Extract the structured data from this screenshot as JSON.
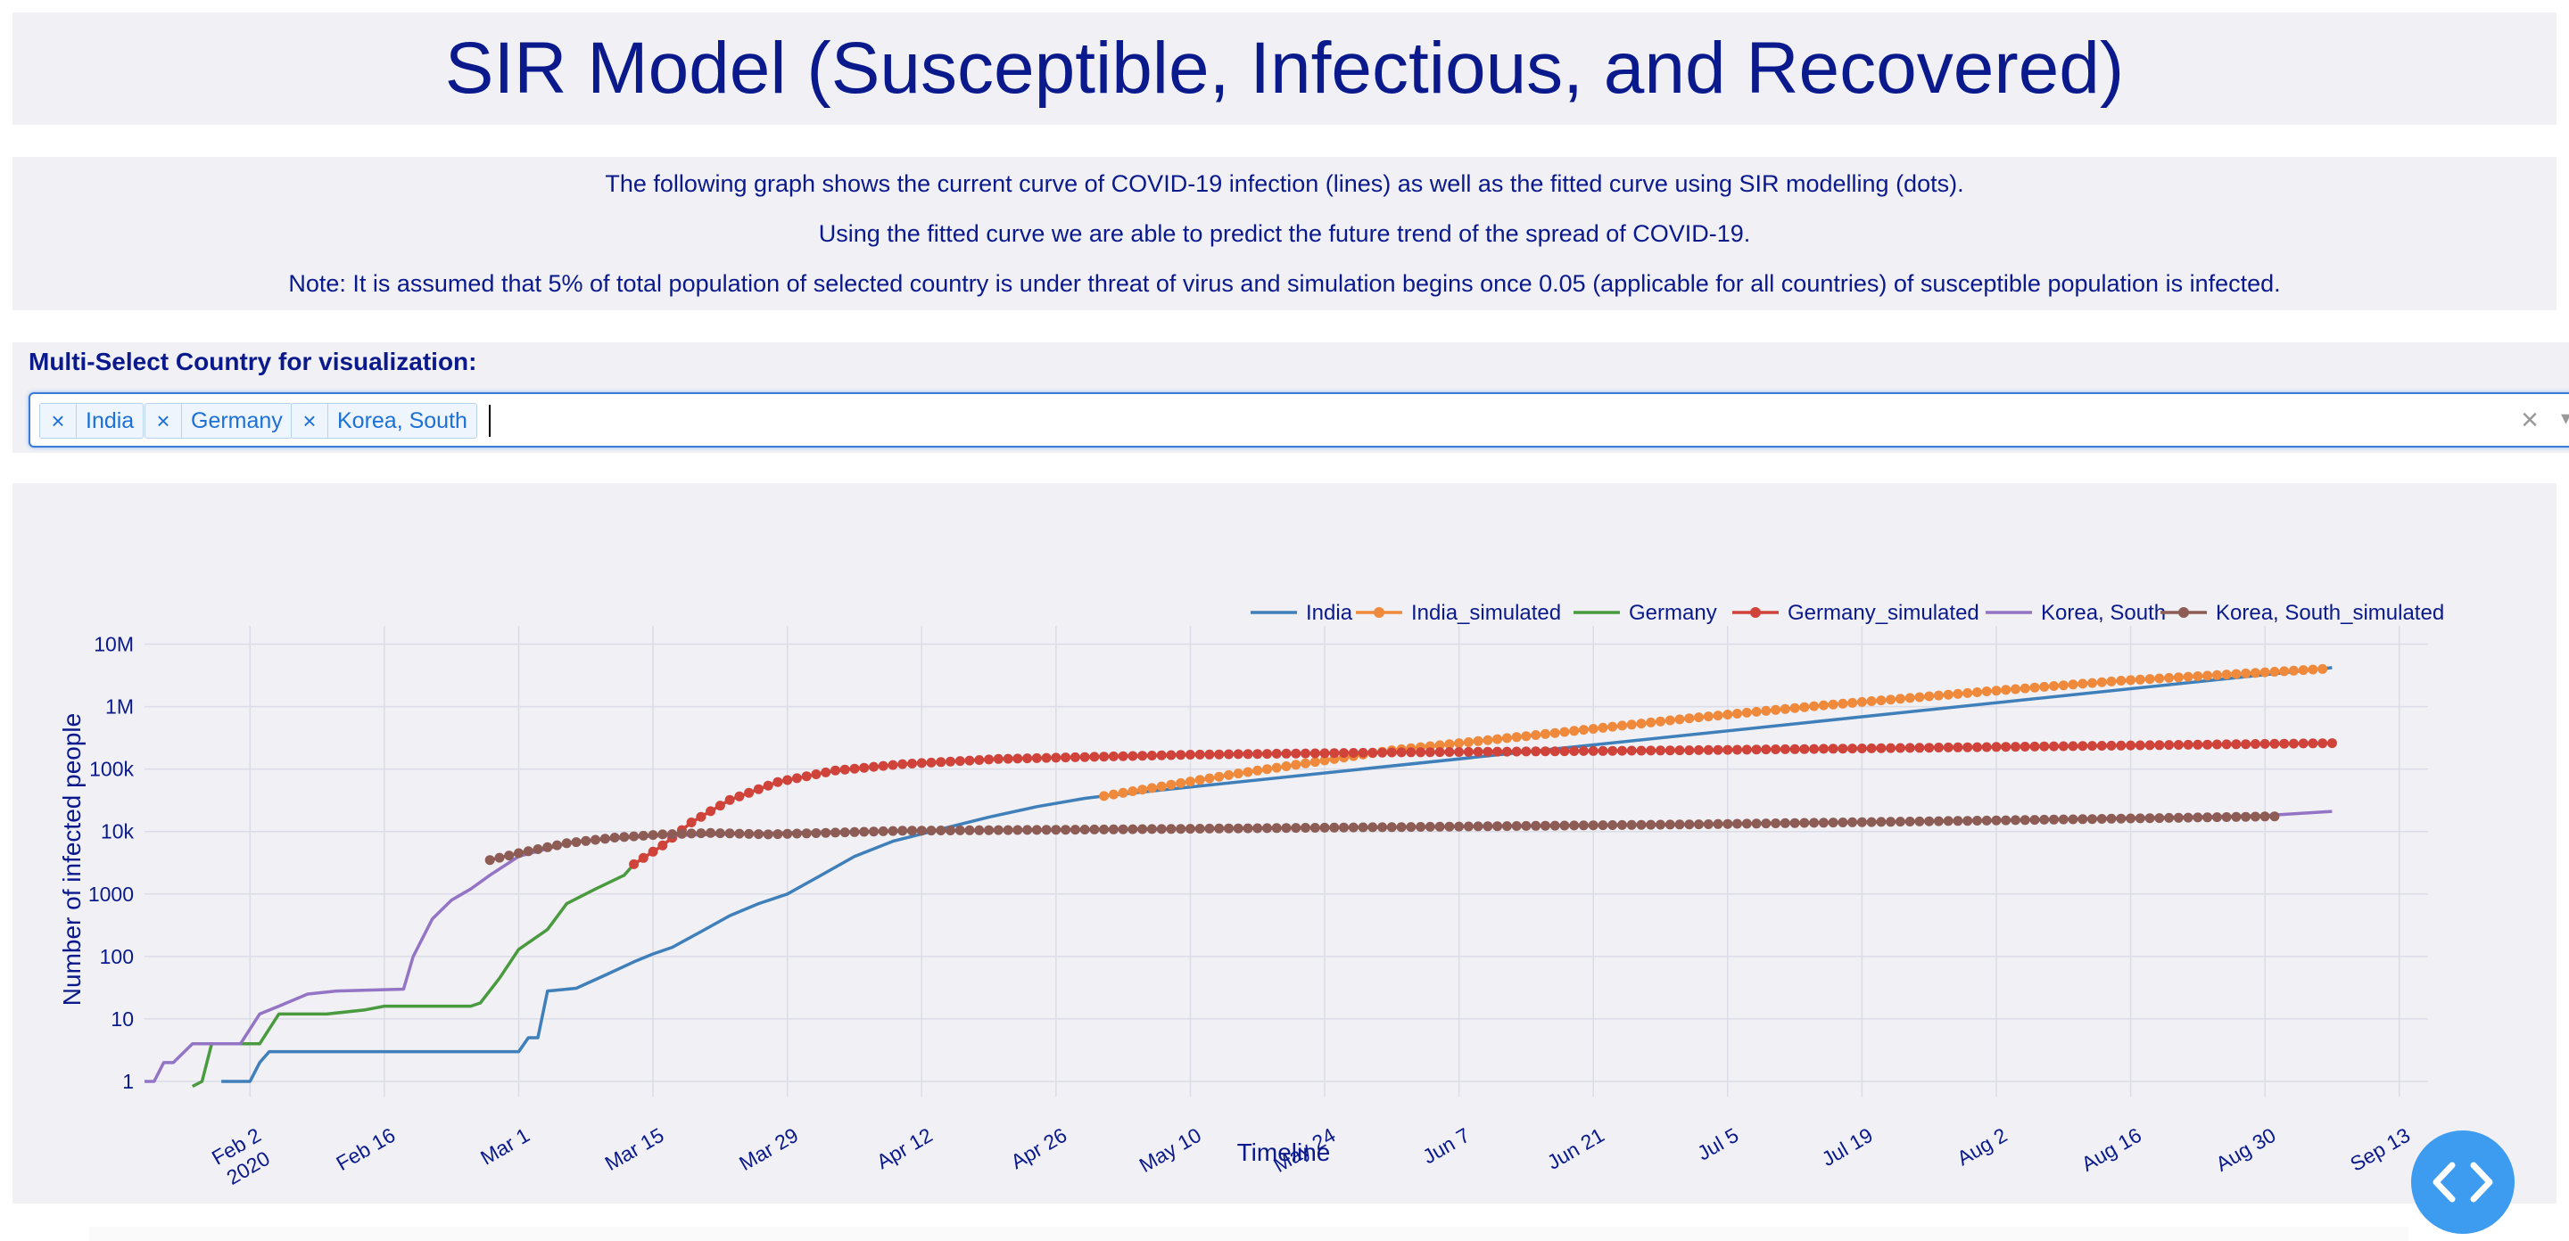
{
  "page": {
    "title": "SIR Model (Susceptible, Infectious, and Recovered)",
    "description": [
      "The following graph shows the current curve of COVID-19 infection (lines) as well as the fitted curve using SIR modelling (dots).",
      "Using the fitted curve we are able to predict the future trend of the spread of COVID-19.",
      "Note: It is assumed that 5% of total population of selected country is under threat of virus and simulation begins once 0.05 (applicable for all countries) of susceptible population is infected."
    ]
  },
  "selector": {
    "label": "Multi-Select Country for visualization:",
    "selected": [
      "India",
      "Germany",
      "Korea, South"
    ],
    "remove_glyph": "×",
    "clear_glyph": "×",
    "dropdown_glyph": "▾"
  },
  "fab": {
    "icon": "code-icon"
  },
  "chart_data": {
    "type": "line",
    "xlabel": "Timeline",
    "ylabel": "Number of infected people",
    "yscale": "log",
    "ylim": [
      1,
      10000000
    ],
    "xlim": [
      "2020-01-22",
      "2020-09-16"
    ],
    "yticks": [
      {
        "value": 1,
        "label": "1"
      },
      {
        "value": 10,
        "label": "10"
      },
      {
        "value": 100,
        "label": "100"
      },
      {
        "value": 1000,
        "label": "1000"
      },
      {
        "value": 10000,
        "label": "10k"
      },
      {
        "value": 100000,
        "label": "100k"
      },
      {
        "value": 1000000,
        "label": "1M"
      },
      {
        "value": 10000000,
        "label": "10M"
      }
    ],
    "xticks": [
      {
        "date": "2020-02-02",
        "label": "Feb 2",
        "label2": "2020"
      },
      {
        "date": "2020-02-16",
        "label": "Feb 16"
      },
      {
        "date": "2020-03-01",
        "label": "Mar 1"
      },
      {
        "date": "2020-03-15",
        "label": "Mar 15"
      },
      {
        "date": "2020-03-29",
        "label": "Mar 29"
      },
      {
        "date": "2020-04-12",
        "label": "Apr 12"
      },
      {
        "date": "2020-04-26",
        "label": "Apr 26"
      },
      {
        "date": "2020-05-10",
        "label": "May 10"
      },
      {
        "date": "2020-05-24",
        "label": "May 24"
      },
      {
        "date": "2020-06-07",
        "label": "Jun 7"
      },
      {
        "date": "2020-06-21",
        "label": "Jun 21"
      },
      {
        "date": "2020-07-05",
        "label": "Jul 5"
      },
      {
        "date": "2020-07-19",
        "label": "Jul 19"
      },
      {
        "date": "2020-08-02",
        "label": "Aug 2"
      },
      {
        "date": "2020-08-16",
        "label": "Aug 16"
      },
      {
        "date": "2020-08-30",
        "label": "Aug 30"
      },
      {
        "date": "2020-09-13",
        "label": "Sep 13"
      }
    ],
    "grid": true,
    "legend_position": "top-right",
    "series": [
      {
        "name": "India",
        "color": "#3f7fba",
        "mode": "lines",
        "points": [
          [
            "2020-01-30",
            1
          ],
          [
            "2020-02-02",
            1
          ],
          [
            "2020-02-03",
            2
          ],
          [
            "2020-02-04",
            3
          ],
          [
            "2020-03-01",
            3
          ],
          [
            "2020-03-02",
            5
          ],
          [
            "2020-03-03",
            5
          ],
          [
            "2020-03-04",
            28
          ],
          [
            "2020-03-07",
            31
          ],
          [
            "2020-03-10",
            50
          ],
          [
            "2020-03-13",
            82
          ],
          [
            "2020-03-15",
            110
          ],
          [
            "2020-03-17",
            140
          ],
          [
            "2020-03-20",
            250
          ],
          [
            "2020-03-23",
            450
          ],
          [
            "2020-03-26",
            700
          ],
          [
            "2020-03-29",
            1000
          ],
          [
            "2020-04-01",
            1800
          ],
          [
            "2020-04-05",
            4000
          ],
          [
            "2020-04-09",
            7000
          ],
          [
            "2020-04-13",
            10000
          ],
          [
            "2020-04-19",
            17000
          ],
          [
            "2020-04-24",
            25000
          ],
          [
            "2020-04-29",
            34000
          ],
          [
            "2020-05-01",
            37000
          ],
          [
            "2020-09-06",
            4200000
          ]
        ]
      },
      {
        "name": "India_simulated",
        "color": "#ef8a3c",
        "mode": "lines+markers",
        "points": [
          [
            "2020-05-01",
            37000
          ],
          [
            "2020-05-15",
            85000
          ],
          [
            "2020-05-31",
            200000
          ],
          [
            "2020-06-15",
            350000
          ],
          [
            "2020-07-01",
            650000
          ],
          [
            "2020-07-15",
            1050000
          ],
          [
            "2020-08-01",
            1750000
          ],
          [
            "2020-08-15",
            2600000
          ],
          [
            "2020-09-05",
            4000000
          ]
        ]
      },
      {
        "name": "Germany",
        "color": "#4a9a3f",
        "mode": "lines",
        "points": [
          [
            "2020-01-27",
            0.7
          ],
          [
            "2020-01-28",
            1
          ],
          [
            "2020-01-29",
            4
          ],
          [
            "2020-02-01",
            4
          ],
          [
            "2020-02-03",
            4
          ],
          [
            "2020-02-05",
            12
          ],
          [
            "2020-02-10",
            12
          ],
          [
            "2020-02-14",
            14
          ],
          [
            "2020-02-16",
            16
          ],
          [
            "2020-02-25",
            16
          ],
          [
            "2020-02-26",
            18
          ],
          [
            "2020-02-28",
            45
          ],
          [
            "2020-03-01",
            130
          ],
          [
            "2020-03-04",
            270
          ],
          [
            "2020-03-06",
            700
          ],
          [
            "2020-03-09",
            1200
          ],
          [
            "2020-03-12",
            2000
          ],
          [
            "2020-03-13",
            3000
          ]
        ]
      },
      {
        "name": "Germany_simulated",
        "color": "#d0433a",
        "mode": "lines+markers",
        "points": [
          [
            "2020-03-13",
            3000
          ],
          [
            "2020-03-16",
            6000
          ],
          [
            "2020-03-19",
            14000
          ],
          [
            "2020-03-23",
            32000
          ],
          [
            "2020-03-28",
            62000
          ],
          [
            "2020-04-03",
            95000
          ],
          [
            "2020-04-10",
            120000
          ],
          [
            "2020-04-20",
            145000
          ],
          [
            "2020-05-10",
            170000
          ],
          [
            "2020-06-01",
            185000
          ],
          [
            "2020-07-01",
            200000
          ],
          [
            "2020-08-01",
            225000
          ],
          [
            "2020-09-06",
            260000
          ]
        ]
      },
      {
        "name": "Korea, South",
        "color": "#9474c4",
        "mode": "lines",
        "points": [
          [
            "2020-01-22",
            1
          ],
          [
            "2020-01-23",
            1
          ],
          [
            "2020-01-24",
            2
          ],
          [
            "2020-01-25",
            2
          ],
          [
            "2020-01-27",
            4
          ],
          [
            "2020-02-01",
            4
          ],
          [
            "2020-02-03",
            12
          ],
          [
            "2020-02-05",
            16
          ],
          [
            "2020-02-08",
            25
          ],
          [
            "2020-02-11",
            28
          ],
          [
            "2020-02-18",
            30
          ],
          [
            "2020-02-19",
            100
          ],
          [
            "2020-02-21",
            400
          ],
          [
            "2020-02-23",
            800
          ],
          [
            "2020-02-25",
            1200
          ],
          [
            "2020-02-27",
            2000
          ],
          [
            "2020-03-01",
            4000
          ],
          [
            "2020-03-07",
            7000
          ],
          [
            "2020-03-15",
            8500
          ],
          [
            "2020-04-01",
            9800
          ],
          [
            "2020-05-01",
            10800
          ],
          [
            "2020-06-01",
            11800
          ],
          [
            "2020-07-01",
            13000
          ],
          [
            "2020-08-01",
            15000
          ],
          [
            "2020-08-30",
            18000
          ],
          [
            "2020-09-06",
            21000
          ]
        ]
      },
      {
        "name": "Korea, South_simulated",
        "color": "#8c5c55",
        "mode": "lines+markers",
        "points": [
          [
            "2020-02-27",
            3500
          ],
          [
            "2020-03-01",
            4500
          ],
          [
            "2020-03-06",
            6500
          ],
          [
            "2020-03-11",
            8000
          ],
          [
            "2020-03-16",
            9000
          ],
          [
            "2020-03-21",
            9500
          ],
          [
            "2020-03-27",
            9000
          ],
          [
            "2020-04-10",
            10300
          ],
          [
            "2020-05-01",
            10800
          ],
          [
            "2020-06-01",
            11800
          ],
          [
            "2020-07-01",
            13000
          ],
          [
            "2020-08-01",
            15000
          ],
          [
            "2020-08-31",
            17500
          ]
        ]
      }
    ]
  }
}
